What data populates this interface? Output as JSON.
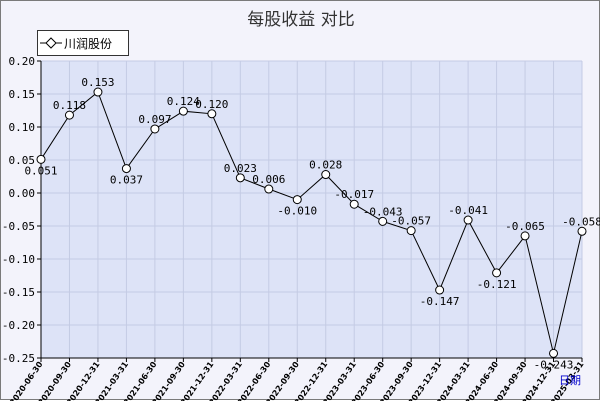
{
  "chart_data": {
    "type": "line",
    "title": "每股收益  对比",
    "x_axis_label": "日期",
    "ylim": [
      -0.25,
      0.2
    ],
    "y_ticks": [
      "0.20",
      "0.15",
      "0.10",
      "0.05",
      "0.00",
      "-0.05",
      "-0.10",
      "-0.15",
      "-0.20",
      "-0.25"
    ],
    "grid": true,
    "legend_position": "top-left",
    "categories": [
      "2020-06-30",
      "2020-09-30",
      "2020-12-31",
      "2021-03-31",
      "2021-06-30",
      "2021-09-30",
      "2021-12-31",
      "2022-03-31",
      "2022-06-30",
      "2022-09-30",
      "2022-12-31",
      "2023-03-31",
      "2023-06-30",
      "2023-09-30",
      "2023-12-31",
      "2024-03-31",
      "2024-06-30",
      "2024-09-30",
      "2024-12-31",
      "2025-03-31"
    ],
    "series": [
      {
        "name": "川润股份",
        "values": [
          0.051,
          0.118,
          0.153,
          0.037,
          0.097,
          0.124,
          0.12,
          0.023,
          0.006,
          -0.01,
          0.028,
          -0.017,
          -0.043,
          -0.057,
          -0.147,
          -0.041,
          -0.121,
          -0.065,
          -0.243,
          -0.058
        ],
        "labels": [
          "0.051",
          "0.118",
          "0.153",
          "0.037",
          "0.097",
          "0.124",
          "0.120",
          "0.023",
          "0.006",
          "-0.010",
          "0.028",
          "-0.017",
          "-0.043",
          "-0.057",
          "-0.147",
          "-0.041",
          "-0.121",
          "-0.065",
          "-0.243",
          "-0.058"
        ]
      }
    ]
  },
  "colors": {
    "plot_bg": "#dde3f7",
    "grid": "#c4cbe4",
    "line": "#000000",
    "marker_fill": "#ffffff"
  }
}
